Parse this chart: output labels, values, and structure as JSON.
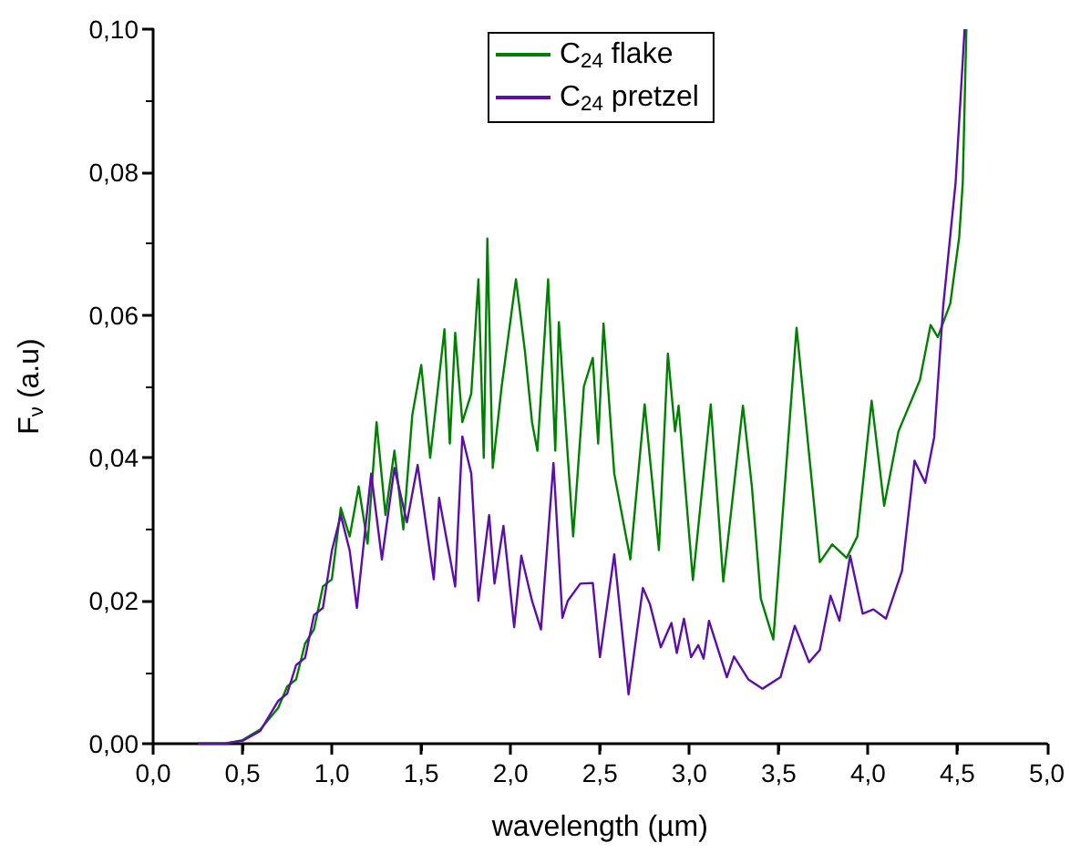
{
  "chart_data": {
    "type": "line",
    "xlabel": "wavelength (µm)",
    "ylabel": "F$_{ν}$ (a.u)",
    "xlim": [
      0,
      5
    ],
    "ylim": [
      0,
      0.1
    ],
    "xticks": [
      {
        "value": 0,
        "label": "0,0"
      },
      {
        "value": 0.5,
        "label": "0,5"
      },
      {
        "value": 1,
        "label": "1,0"
      },
      {
        "value": 1.5,
        "label": "1,5"
      },
      {
        "value": 2,
        "label": "2,0"
      },
      {
        "value": 2.5,
        "label": "2,5"
      },
      {
        "value": 3,
        "label": "3,0"
      },
      {
        "value": 3.5,
        "label": "3,5"
      },
      {
        "value": 4,
        "label": "4,0"
      },
      {
        "value": 4.5,
        "label": "4,5"
      },
      {
        "value": 5,
        "label": "5,0"
      }
    ],
    "yticks": [
      {
        "value": 0,
        "label": "0,00"
      },
      {
        "value": 0.02,
        "label": "0,02"
      },
      {
        "value": 0.04,
        "label": "0,04"
      },
      {
        "value": 0.06,
        "label": "0,06"
      },
      {
        "value": 0.08,
        "label": "0,08"
      },
      {
        "value": 0.1,
        "label": "0,10"
      }
    ],
    "grid": false,
    "legend": "top",
    "marker": "none",
    "line_style": "solid",
    "series": [
      {
        "name": "C$_{24}$ flake",
        "color": "#008000",
        "x": [
          0.25,
          0.4,
          0.5,
          0.6,
          0.7,
          0.75,
          0.8,
          0.85,
          0.9,
          0.95,
          1.0,
          1.05,
          1.1,
          1.15,
          1.2,
          1.25,
          1.3,
          1.35,
          1.4,
          1.45,
          1.5,
          1.55,
          1.63,
          1.66,
          1.69,
          1.73,
          1.78,
          1.82,
          1.85,
          1.87,
          1.9,
          1.95,
          2.03,
          2.08,
          2.12,
          2.15,
          2.21,
          2.25,
          2.27,
          2.35,
          2.41,
          2.46,
          2.49,
          2.52,
          2.58,
          2.67,
          2.75,
          2.83,
          2.88,
          2.92,
          2.94,
          3.02,
          3.12,
          3.19,
          3.3,
          3.35,
          3.4,
          3.47,
          3.6,
          3.73,
          3.8,
          3.88,
          3.94,
          4.02,
          4.09,
          4.17,
          4.29,
          4.35,
          4.39,
          4.46,
          4.51,
          4.53,
          4.55
        ],
        "values": [
          0,
          0,
          0.0005,
          0.002,
          0.005,
          0.008,
          0.009,
          0.014,
          0.016,
          0.022,
          0.023,
          0.033,
          0.029,
          0.036,
          0.028,
          0.045,
          0.032,
          0.041,
          0.03,
          0.046,
          0.053,
          0.04,
          0.058,
          0.042,
          0.0575,
          0.045,
          0.049,
          0.065,
          0.04,
          0.0707,
          0.0386,
          0.05,
          0.065,
          0.055,
          0.045,
          0.041,
          0.065,
          0.041,
          0.059,
          0.029,
          0.05,
          0.054,
          0.042,
          0.0588,
          0.0378,
          0.0258,
          0.0475,
          0.0271,
          0.0546,
          0.0437,
          0.0473,
          0.0229,
          0.0475,
          0.0227,
          0.0473,
          0.036,
          0.0203,
          0.0146,
          0.0582,
          0.0254,
          0.0279,
          0.026,
          0.029,
          0.048,
          0.0333,
          0.0437,
          0.0509,
          0.0586,
          0.0569,
          0.0616,
          0.0709,
          0.0786,
          0.1
        ]
      },
      {
        "name": "C$_{24}$ pretzel",
        "color": "#5b0fa8",
        "x": [
          0.25,
          0.4,
          0.5,
          0.6,
          0.7,
          0.75,
          0.8,
          0.85,
          0.9,
          0.95,
          1.0,
          1.05,
          1.1,
          1.14,
          1.22,
          1.28,
          1.35,
          1.42,
          1.48,
          1.57,
          1.6,
          1.69,
          1.73,
          1.78,
          1.82,
          1.88,
          1.91,
          1.96,
          2.02,
          2.06,
          2.12,
          2.17,
          2.24,
          2.29,
          2.32,
          2.39,
          2.46,
          2.5,
          2.58,
          2.66,
          2.74,
          2.78,
          2.84,
          2.9,
          2.93,
          2.97,
          3.01,
          3.05,
          3.08,
          3.11,
          3.21,
          3.25,
          3.33,
          3.41,
          3.51,
          3.59,
          3.67,
          3.73,
          3.79,
          3.84,
          3.9,
          3.97,
          4.03,
          4.1,
          4.19,
          4.26,
          4.32,
          4.37,
          4.42,
          4.49,
          4.54
        ],
        "values": [
          0,
          0,
          0.0004,
          0.0018,
          0.006,
          0.007,
          0.011,
          0.012,
          0.018,
          0.019,
          0.027,
          0.032,
          0.027,
          0.019,
          0.0378,
          0.0258,
          0.0386,
          0.031,
          0.039,
          0.023,
          0.0344,
          0.022,
          0.043,
          0.0378,
          0.02,
          0.032,
          0.0224,
          0.0305,
          0.0163,
          0.0263,
          0.02,
          0.016,
          0.0393,
          0.0176,
          0.02,
          0.0224,
          0.0225,
          0.0121,
          0.0265,
          0.0069,
          0.0218,
          0.0195,
          0.0135,
          0.0169,
          0.0127,
          0.0175,
          0.0121,
          0.0138,
          0.0119,
          0.0172,
          0.0093,
          0.0122,
          0.009,
          0.0077,
          0.0093,
          0.0165,
          0.0114,
          0.0131,
          0.0207,
          0.0172,
          0.0263,
          0.0182,
          0.0188,
          0.0175,
          0.0242,
          0.0396,
          0.0365,
          0.0429,
          0.0611,
          0.0786,
          0.1
        ]
      }
    ]
  }
}
